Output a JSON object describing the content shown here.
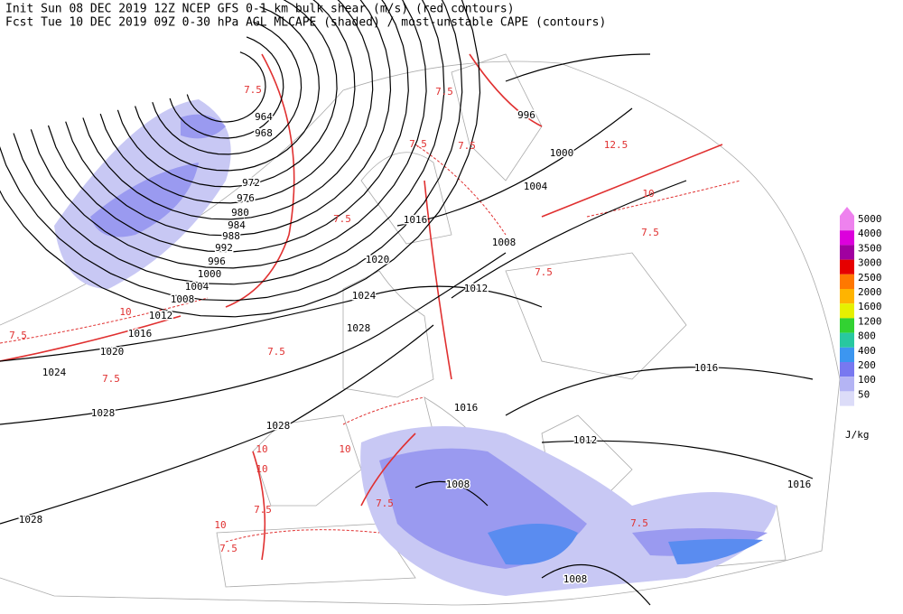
{
  "header": {
    "init_line": "Init  Sun 08 DEC 2019 12Z   NCEP GFS 0-1 km bulk shear (m/s) (red contours)",
    "fcst_line": "Fcst Tue 10 DEC 2019 09Z   0-30 hPa AGL MLCAPE (shaded) / most-unstable CAPE (contours)"
  },
  "pressure_labels": [
    "964",
    "968",
    "972",
    "976",
    "980",
    "984",
    "988",
    "992",
    "996",
    "1000",
    "1004",
    "1008",
    "1012",
    "1016",
    "1020",
    "1024",
    "1028",
    "1028",
    "1028",
    "1024",
    "1020",
    "1016",
    "1012",
    "1008",
    "1004",
    "1000",
    "996",
    "1016",
    "1012",
    "1008",
    "1008",
    "1016",
    "1016",
    "1028"
  ],
  "shear_labels": [
    "7.5",
    "7.5",
    "7.5",
    "10",
    "7.5",
    "12.5",
    "10",
    "7.5",
    "7.5",
    "7.5",
    "10",
    "7.5",
    "10",
    "7.5",
    "10",
    "7.5",
    "7.5",
    "10",
    "7.5",
    "7.5",
    "7.5"
  ],
  "legend": {
    "unit": "J/kg",
    "items": [
      {
        "label": "5000",
        "color": "#ee82ee"
      },
      {
        "label": "4000",
        "color": "#dc00dc"
      },
      {
        "label": "3500",
        "color": "#a000a0"
      },
      {
        "label": "3000",
        "color": "#e60000"
      },
      {
        "label": "2500",
        "color": "#ff7800"
      },
      {
        "label": "2000",
        "color": "#ffb400"
      },
      {
        "label": "1600",
        "color": "#e6f000"
      },
      {
        "label": "1200",
        "color": "#32d232"
      },
      {
        "label": "800",
        "color": "#28c8a0"
      },
      {
        "label": "400",
        "color": "#3c96f0"
      },
      {
        "label": "200",
        "color": "#7878f0"
      },
      {
        "label": "100",
        "color": "#b4b4f4"
      },
      {
        "label": "50",
        "color": "#dcdcf8"
      }
    ]
  }
}
